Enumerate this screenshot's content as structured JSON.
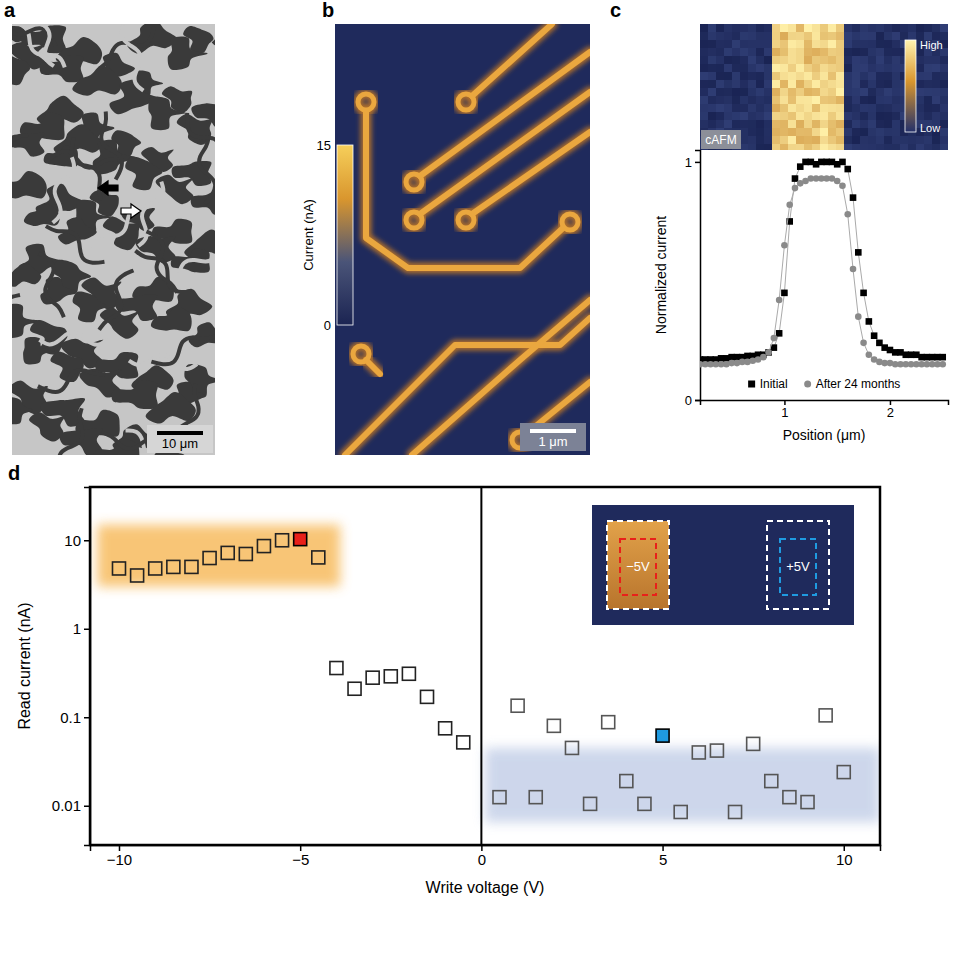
{
  "chart_data": [
    {
      "panel": "a",
      "type": "image",
      "scale_bar": "10 μm"
    },
    {
      "panel": "b",
      "type": "image",
      "scale_bar": "1 μm",
      "colorbar": {
        "label": "Current (nA)",
        "range": [
          0,
          15
        ],
        "ticks": [
          0,
          15
        ]
      }
    },
    {
      "panel": "c",
      "type": "line",
      "inset_label": "cAFM",
      "colorbar": {
        "labels": [
          "High",
          "Low"
        ]
      },
      "x_label": "Position (μm)",
      "y_label": "Normalized current",
      "xlim": [
        0.2,
        2.55
      ],
      "ylim": [
        0,
        1.05
      ],
      "xticks": [
        1,
        2
      ],
      "yticks": [
        0,
        1
      ],
      "grid": false,
      "legend": "lower center",
      "series": [
        {
          "name": "Initial",
          "color": "#000000",
          "marker": "square",
          "line_style": "solid",
          "x": [
            0.2,
            0.25,
            0.3,
            0.35,
            0.4,
            0.45,
            0.5,
            0.55,
            0.6,
            0.65,
            0.7,
            0.75,
            0.8,
            0.85,
            0.9,
            0.95,
            1,
            1.05,
            1.1,
            1.15,
            1.2,
            1.25,
            1.3,
            1.35,
            1.4,
            1.45,
            1.5,
            1.55,
            1.6,
            1.65,
            1.7,
            1.75,
            1.8,
            1.85,
            1.9,
            1.95,
            2,
            2.05,
            2.1,
            2.15,
            2.2,
            2.25,
            2.3,
            2.35,
            2.4,
            2.45,
            2.5
          ],
          "values": [
            0.17,
            0.17,
            0.17,
            0.17,
            0.175,
            0.175,
            0.18,
            0.18,
            0.18,
            0.185,
            0.185,
            0.19,
            0.19,
            0.2,
            0.22,
            0.28,
            0.45,
            0.75,
            0.93,
            0.98,
            1,
            1,
            0.99,
            1,
            1,
            1,
            0.99,
            1,
            0.97,
            0.85,
            0.62,
            0.45,
            0.33,
            0.27,
            0.24,
            0.22,
            0.21,
            0.2,
            0.2,
            0.19,
            0.19,
            0.19,
            0.18,
            0.18,
            0.18,
            0.18,
            0.18
          ]
        },
        {
          "name": "After 24 months",
          "color": "#8a8a8a",
          "marker": "circle",
          "line_style": "solid",
          "x": [
            0.2,
            0.25,
            0.3,
            0.35,
            0.4,
            0.45,
            0.5,
            0.55,
            0.6,
            0.65,
            0.7,
            0.75,
            0.8,
            0.85,
            0.9,
            0.95,
            1,
            1.05,
            1.1,
            1.15,
            1.2,
            1.25,
            1.3,
            1.35,
            1.4,
            1.45,
            1.5,
            1.55,
            1.6,
            1.65,
            1.7,
            1.75,
            1.8,
            1.85,
            1.9,
            1.95,
            2,
            2.05,
            2.1,
            2.15,
            2.2,
            2.25,
            2.3,
            2.35,
            2.4,
            2.45,
            2.5
          ],
          "values": [
            0.15,
            0.15,
            0.15,
            0.15,
            0.15,
            0.15,
            0.155,
            0.155,
            0.16,
            0.16,
            0.165,
            0.17,
            0.18,
            0.2,
            0.26,
            0.42,
            0.65,
            0.82,
            0.89,
            0.91,
            0.92,
            0.93,
            0.93,
            0.93,
            0.93,
            0.93,
            0.92,
            0.9,
            0.78,
            0.55,
            0.35,
            0.24,
            0.19,
            0.17,
            0.16,
            0.155,
            0.155,
            0.15,
            0.15,
            0.15,
            0.15,
            0.15,
            0.15,
            0.15,
            0.15,
            0.15,
            0.15
          ]
        }
      ]
    },
    {
      "panel": "d",
      "type": "scatter",
      "x_label": "Write voltage (V)",
      "y_label": "Read current (nA)",
      "log": "y",
      "grid": false,
      "xlim": [
        -10.8,
        11
      ],
      "ylim": [
        0.0036,
        40
      ],
      "xticks": [
        {
          "value": -10,
          "label": "−10"
        },
        {
          "value": -5,
          "label": "−5"
        },
        0,
        5,
        10
      ],
      "yticks": [
        0.01,
        0.1,
        1,
        10
      ],
      "marker": "square",
      "x": [
        -10,
        -9.5,
        -9,
        -8.5,
        -8,
        -7.5,
        -7,
        -6.5,
        -6,
        -5.5,
        -5,
        -4.5,
        -4,
        -3.5,
        -3,
        -2.5,
        -2,
        -1.5,
        -1,
        -0.5,
        0.5,
        1,
        1.5,
        2,
        2.5,
        3,
        3.5,
        4,
        4.5,
        5,
        5.5,
        6,
        6.5,
        7,
        7.5,
        8,
        8.5,
        9,
        9.5,
        10
      ],
      "values": [
        4.8,
        4.0,
        4.8,
        5.0,
        5.0,
        6.3,
        7.2,
        7.0,
        8.6,
        10,
        10.3,
        6.4,
        0.36,
        0.21,
        0.28,
        0.29,
        0.31,
        0.17,
        0.075,
        0.052,
        0.0125,
        0.135,
        0.0125,
        0.08,
        0.045,
        0.0105,
        0.088,
        0.019,
        0.0105,
        0.062,
        0.0085,
        0.04,
        0.042,
        0.0085,
        0.05,
        0.019,
        0.0125,
        0.011,
        0.105,
        0.024
      ],
      "colors": [
        "#222222",
        "#222222",
        "#222222",
        "#222222",
        "#222222",
        "#222222",
        "#222222",
        "#222222",
        "#222222",
        "#222222",
        "#e8201a",
        "#222222",
        "#222222",
        "#222222",
        "#222222",
        "#222222",
        "#222222",
        "#222222",
        "#222222",
        "#222222",
        "#555555",
        "#555555",
        "#555555",
        "#555555",
        "#555555",
        "#555555",
        "#555555",
        "#555555",
        "#555555",
        "#1f9ae0",
        "#555555",
        "#555555",
        "#555555",
        "#555555",
        "#555555",
        "#555555",
        "#555555",
        "#555555",
        "#555555",
        "#555555"
      ],
      "vlines": [
        0
      ],
      "bands": [
        {
          "x": [
            -10.6,
            -3.9
          ],
          "y": [
            3,
            15
          ],
          "color": "#f6b24a"
        },
        {
          "x": [
            0.1,
            11
          ],
          "y": [
            0.0065,
            0.045
          ],
          "color": "#c5d0e8"
        }
      ],
      "inset_labels": [
        "−5V",
        "+5V"
      ]
    }
  ]
}
